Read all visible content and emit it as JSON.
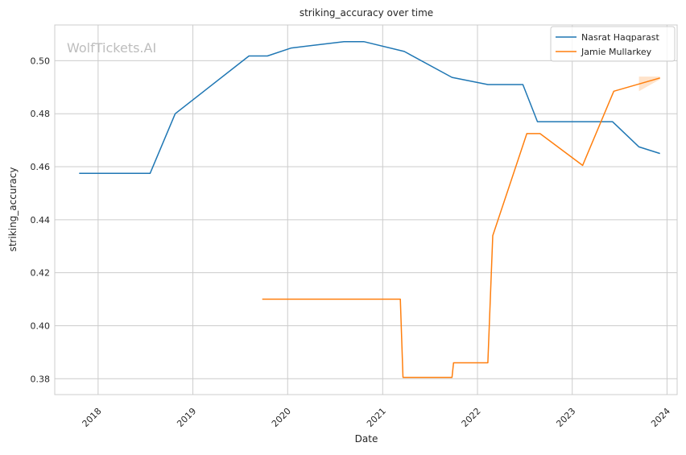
{
  "chart_data": {
    "type": "line",
    "title": "striking_accuracy over time",
    "xlabel": "Date",
    "ylabel": "striking_accuracy",
    "watermark": "WolfTickets.AI",
    "x_ticks": [
      "2018",
      "2019",
      "2020",
      "2021",
      "2022",
      "2023",
      "2024"
    ],
    "y_ticks": [
      "0.38",
      "0.40",
      "0.42",
      "0.44",
      "0.46",
      "0.48",
      "0.50"
    ],
    "xlim": [
      "2017-07-18",
      "2024-02-09"
    ],
    "ylim": [
      0.374,
      0.5135
    ],
    "grid": true,
    "legend_position": "top-right",
    "series": [
      {
        "name": "Nasrat Haqparast",
        "color": "#1f77b4",
        "points": [
          [
            "2017-10-20",
            0.4575
          ],
          [
            "2018-07-20",
            0.4575
          ],
          [
            "2018-10-25",
            0.48
          ],
          [
            "2019-08-05",
            0.5018
          ],
          [
            "2019-10-15",
            0.5018
          ],
          [
            "2020-01-15",
            0.5048
          ],
          [
            "2020-08-05",
            0.5072
          ],
          [
            "2020-10-20",
            0.5072
          ],
          [
            "2021-03-25",
            0.5035
          ],
          [
            "2021-09-25",
            0.4937
          ],
          [
            "2022-02-10",
            0.491
          ],
          [
            "2022-06-25",
            0.491
          ],
          [
            "2022-08-20",
            0.477
          ],
          [
            "2023-06-05",
            0.477
          ],
          [
            "2023-09-15",
            0.4675
          ],
          [
            "2023-12-05",
            0.465
          ]
        ]
      },
      {
        "name": "Jamie Mullarkey",
        "color": "#ff7f0e",
        "points": [
          [
            "2019-09-25",
            0.41
          ],
          [
            "2021-03-10",
            0.41
          ],
          [
            "2021-03-20",
            0.3805
          ],
          [
            "2021-09-25",
            0.3805
          ],
          [
            "2021-10-01",
            0.386
          ],
          [
            "2022-02-10",
            0.386
          ],
          [
            "2022-03-01",
            0.434
          ],
          [
            "2022-07-10",
            0.4725
          ],
          [
            "2022-08-30",
            0.4725
          ],
          [
            "2023-02-10",
            0.4605
          ],
          [
            "2023-06-10",
            0.4885
          ],
          [
            "2023-12-05",
            0.4935
          ]
        ],
        "band": [
          [
            "2023-09-15",
            0.4885,
            0.494
          ],
          [
            "2023-12-05",
            0.493,
            0.494
          ]
        ]
      }
    ]
  }
}
